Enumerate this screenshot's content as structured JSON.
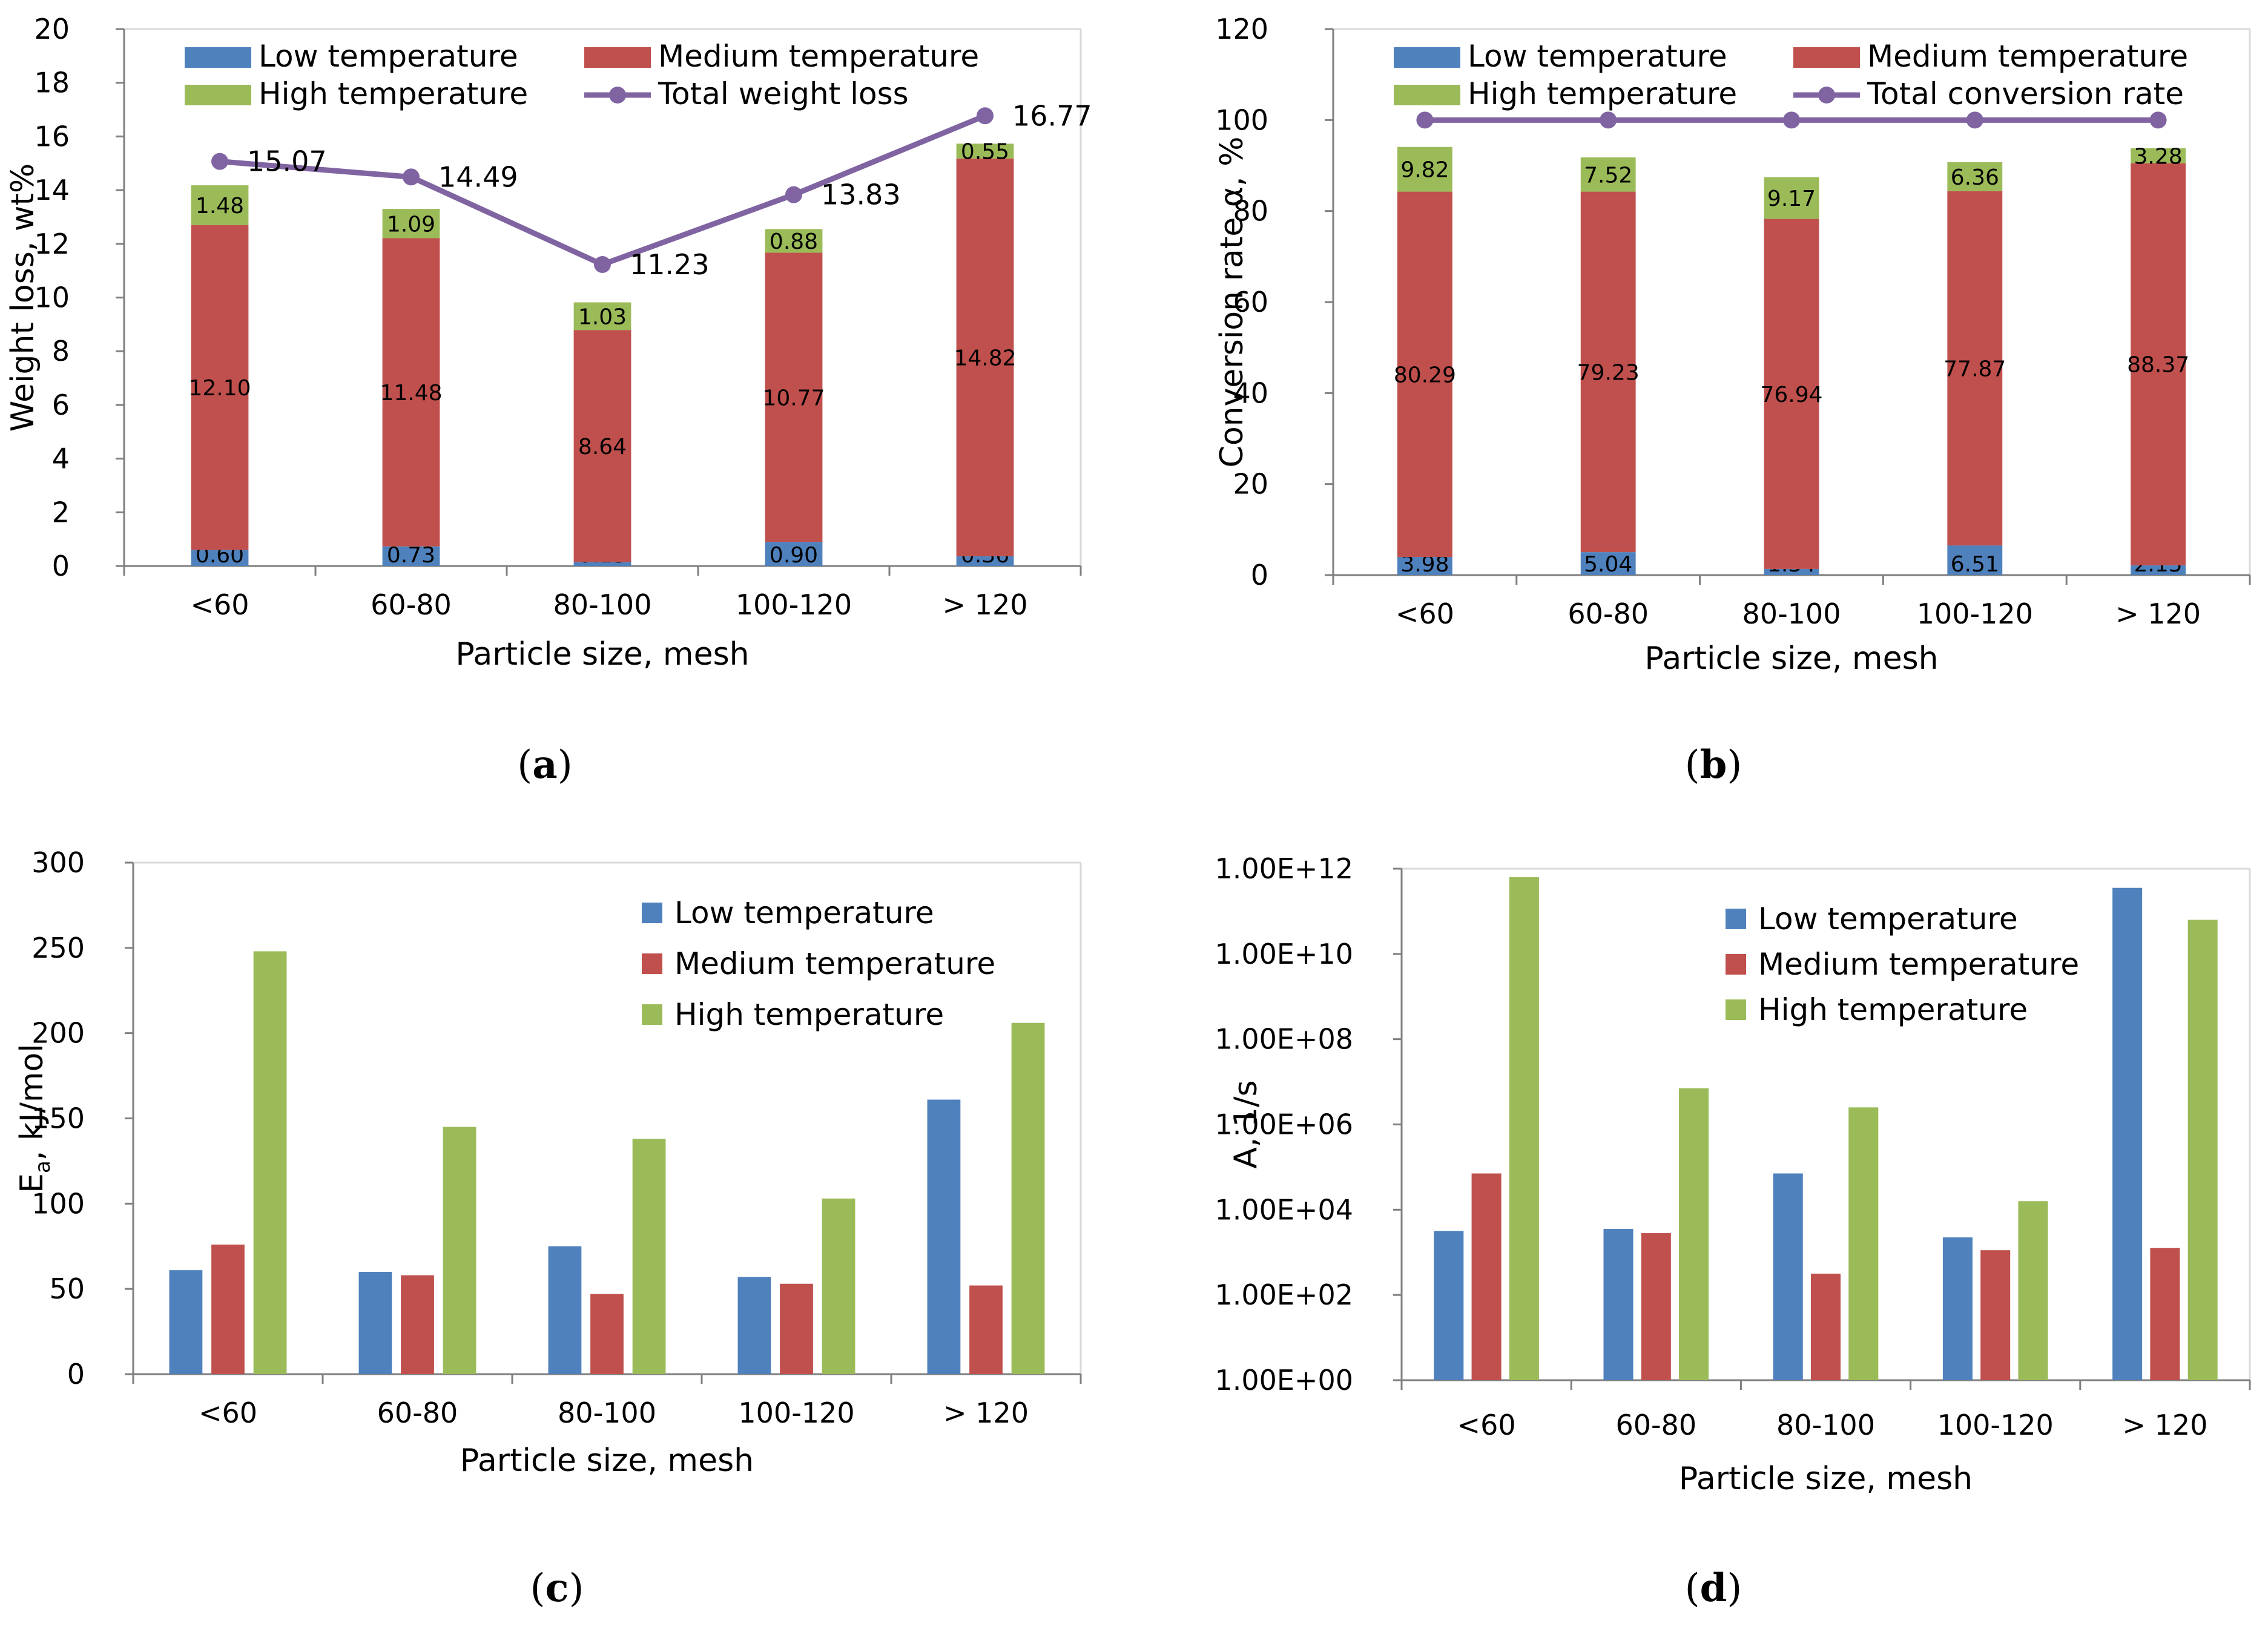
{
  "colors": {
    "low": "#4f81bd",
    "medium": "#c0504d",
    "high": "#9bbb59",
    "line": "#8064a2",
    "axis": "#7f7f7f",
    "grid": "#d9d9d9"
  },
  "captions": [
    "a",
    "b",
    "c",
    "d"
  ],
  "chart_data": [
    {
      "id": "a",
      "type": "bar",
      "stacked": true,
      "categories": [
        "<60",
        "60-80",
        "80-100",
        "100-120",
        "> 120"
      ],
      "xlabel": "Particle size, mesh",
      "ylabel": "Weight loss, wt%",
      "ylim": [
        0,
        20
      ],
      "yticks": [
        "0",
        "2",
        "4",
        "6",
        "8",
        "10",
        "12",
        "14",
        "16",
        "18",
        "20"
      ],
      "series": [
        {
          "name": "Low temperature",
          "values": [
            0.6,
            0.73,
            0.15,
            0.9,
            0.36
          ],
          "labels": [
            "0.60",
            "0.73",
            "0.15",
            "0.90",
            "0.36"
          ]
        },
        {
          "name": "Medium temperature",
          "values": [
            12.1,
            11.48,
            8.64,
            10.77,
            14.82
          ],
          "labels": [
            "12.10",
            "11.48",
            "8.64",
            "10.77",
            "14.82"
          ]
        },
        {
          "name": "High temperature",
          "values": [
            1.48,
            1.09,
            1.03,
            0.88,
            0.55
          ],
          "labels": [
            "1.48",
            "1.09",
            "1.03",
            "0.88",
            "0.55"
          ]
        }
      ],
      "line": {
        "name": "Total weight loss",
        "values": [
          15.07,
          14.49,
          11.23,
          13.83,
          16.77
        ],
        "labels": [
          "15.07",
          "14.49",
          "11.23",
          "13.83",
          "16.77"
        ]
      },
      "legend": [
        "Low temperature",
        "Medium temperature",
        "High temperature",
        "Total weight loss"
      ]
    },
    {
      "id": "b",
      "type": "bar",
      "stacked": true,
      "categories": [
        "<60",
        "60-80",
        "80-100",
        "100-120",
        "> 120"
      ],
      "xlabel": "Particle size, mesh",
      "ylabel": "Conversion rate α, %",
      "ylim": [
        0,
        120
      ],
      "yticks": [
        "0",
        "20",
        "40",
        "60",
        "80",
        "100",
        "120"
      ],
      "series": [
        {
          "name": "Low temperature",
          "values": [
            3.98,
            5.04,
            1.34,
            6.51,
            2.15
          ],
          "labels": [
            "3.98",
            "5.04",
            "1.34",
            "6.51",
            "2.15"
          ]
        },
        {
          "name": "Medium temperature",
          "values": [
            80.29,
            79.23,
            76.94,
            77.87,
            88.37
          ],
          "labels": [
            "80.29",
            "79.23",
            "76.94",
            "77.87",
            "88.37"
          ]
        },
        {
          "name": "High temperature",
          "values": [
            9.82,
            7.52,
            9.17,
            6.36,
            3.28
          ],
          "labels": [
            "9.82",
            "7.52",
            "9.17",
            "6.36",
            "3.28"
          ]
        }
      ],
      "line": {
        "name": "Total conversion rate",
        "values": [
          100,
          100,
          100,
          100,
          100
        ]
      },
      "legend": [
        "Low temperature",
        "Medium temperature",
        "High temperature",
        "Total conversion rate"
      ]
    },
    {
      "id": "c",
      "type": "bar",
      "stacked": false,
      "categories": [
        "<60",
        "60-80",
        "80-100",
        "100-120",
        "> 120"
      ],
      "xlabel": "Particle size, mesh",
      "ylabel_main": "E",
      "ylabel_sub": "a",
      "ylabel_rest": ", kJ/mol",
      "ylim": [
        0,
        300
      ],
      "yticks": [
        "0",
        "50",
        "100",
        "150",
        "200",
        "250",
        "300"
      ],
      "series": [
        {
          "name": "Low temperature",
          "values": [
            61,
            60,
            75,
            57,
            161
          ]
        },
        {
          "name": "Medium temperature",
          "values": [
            76,
            58,
            47,
            53,
            52
          ]
        },
        {
          "name": "High temperature",
          "values": [
            248,
            145,
            138,
            103,
            206
          ]
        }
      ],
      "legend": [
        "Low temperature",
        "Medium temperature",
        "High temperature"
      ]
    },
    {
      "id": "d",
      "type": "bar",
      "stacked": false,
      "log": true,
      "categories": [
        "<60",
        "60-80",
        "80-100",
        "100-120",
        "> 120"
      ],
      "xlabel": "Particle size, mesh",
      "ylabel": "A, 1/s",
      "ylim_log10": [
        0,
        12
      ],
      "yticks": [
        "1.00E+00",
        "1.00E+02",
        "1.00E+04",
        "1.00E+06",
        "1.00E+08",
        "1.00E+10",
        "1.00E+12"
      ],
      "series": [
        {
          "name": "Low temperature",
          "log10_values": [
            3.5,
            3.55,
            4.85,
            3.35,
            11.55
          ]
        },
        {
          "name": "Medium temperature",
          "log10_values": [
            4.85,
            3.45,
            2.5,
            3.05,
            3.1
          ]
        },
        {
          "name": "High temperature",
          "log10_values": [
            11.8,
            6.85,
            6.4,
            4.2,
            10.8
          ]
        }
      ],
      "legend": [
        "Low temperature",
        "Medium temperature",
        "High temperature"
      ]
    }
  ]
}
